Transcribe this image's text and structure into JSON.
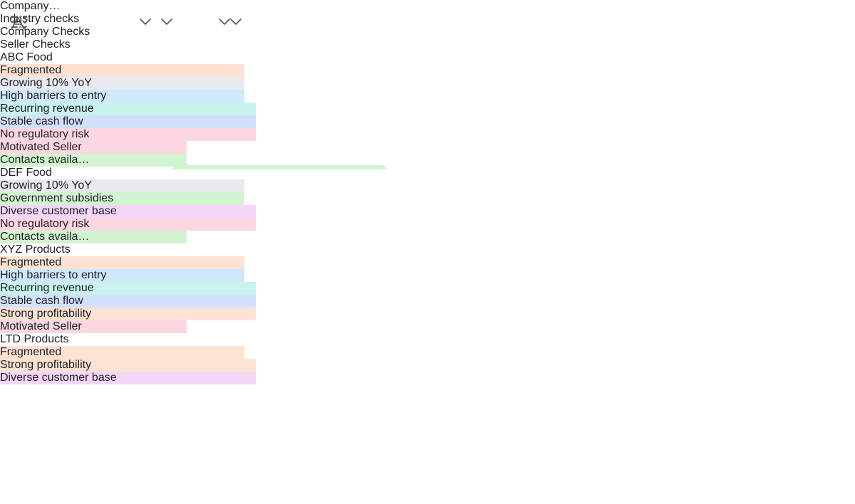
{
  "table": {
    "columns": [
      {
        "label": "Company…",
        "icon": "primary"
      },
      {
        "label": "Industry checks",
        "icon": "multi"
      },
      {
        "label": "Company Checks",
        "icon": "multi"
      },
      {
        "label": "Seller Checks",
        "icon": "multi"
      }
    ],
    "rows": [
      {
        "name": "ABC Food",
        "cells": [
          [
            {
              "text": "Fragmented",
              "color": "#fde2d2"
            },
            {
              "text": "Growing 10% YoY",
              "color": "#e9eaef"
            },
            {
              "text": "High barriers to entry",
              "color": "#cfe8fb"
            }
          ],
          [
            {
              "text": "Recurring revenue",
              "color": "#c9f2ed"
            },
            {
              "text": "Stable cash flow",
              "color": "#d3e0fb"
            },
            {
              "text": "No regulatory risk",
              "color": "#fcd7e0"
            }
          ],
          [
            {
              "text": "Motivated Seller",
              "color": "#fcd7e0"
            },
            {
              "text": "Contacts availa…",
              "color": "#d2f4d0"
            }
          ]
        ]
      },
      {
        "name": "DEF Food",
        "cells": [
          [
            {
              "text": "Growing 10% YoY",
              "color": "#e9eaef"
            },
            {
              "text": "Government subsidies",
              "color": "#d2f4d0"
            }
          ],
          [
            {
              "text": "Diverse customer base",
              "color": "#f4d6f8"
            },
            {
              "text": "No regulatory risk",
              "color": "#fcd7e0"
            }
          ],
          [
            {
              "text": "Contacts availa…",
              "color": "#d2f4d0"
            }
          ]
        ]
      },
      {
        "name": "XYZ Products",
        "cells": [
          [
            {
              "text": "Fragmented",
              "color": "#fde2d2"
            },
            {
              "text": "High barriers to entry",
              "color": "#cfe8fb"
            }
          ],
          [
            {
              "text": "Recurring revenue",
              "color": "#c9f2ed"
            },
            {
              "text": "Stable cash flow",
              "color": "#d3e0fb"
            },
            {
              "text": "Strong profitability",
              "color": "#fde2d2"
            }
          ],
          [
            {
              "text": "Motivated Seller",
              "color": "#fcd7e0"
            }
          ]
        ]
      },
      {
        "name": "LTD Products",
        "cells": [
          [
            {
              "text": "Fragmented",
              "color": "#fde2d2"
            }
          ],
          [
            {
              "text": "Strong profitability",
              "color": "#fde2d2"
            },
            {
              "text": "Diverse customer base",
              "color": "#f4d6f8"
            }
          ],
          []
        ]
      }
    ]
  }
}
